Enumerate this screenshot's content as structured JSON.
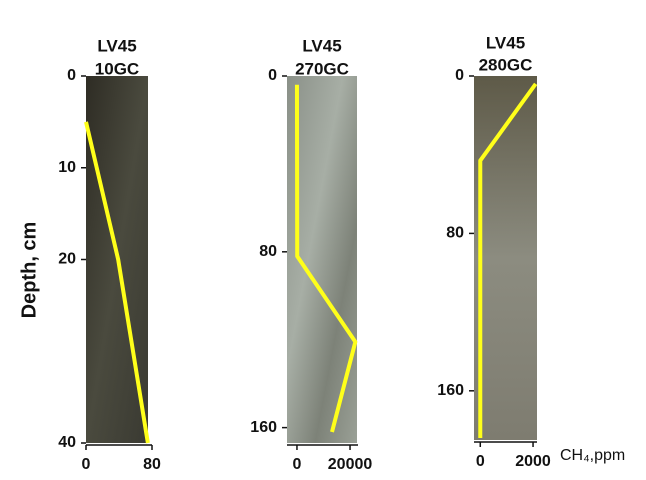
{
  "chart_data": [
    {
      "type": "line",
      "title": [
        "LV45",
        "10GC"
      ],
      "ylabel": "Depth, cm",
      "color": "#ffff1a",
      "x": [
        0,
        39,
        75
      ],
      "y": [
        5,
        20,
        40
      ],
      "xlim": [
        0,
        80
      ],
      "xticks": [
        0,
        80
      ],
      "ylim": [
        0,
        40
      ],
      "yticks": [
        0,
        10,
        20,
        40
      ]
    },
    {
      "type": "line",
      "title": [
        "LV45",
        "270GC"
      ],
      "color": "#ffff1a",
      "x": [
        0,
        100,
        22000,
        13200
      ],
      "y": [
        4,
        82,
        121,
        162
      ],
      "xlim": [
        -3000,
        23000
      ],
      "xticks": [
        0,
        20000
      ],
      "ylim": [
        0,
        167
      ],
      "yticks": [
        0,
        80,
        160
      ]
    },
    {
      "type": "line",
      "title": [
        "LV45",
        "280GC"
      ],
      "xlabel": "CH₄,ppm",
      "color": "#ffff1a",
      "x": [
        2100,
        0,
        0
      ],
      "y": [
        4,
        43,
        184
      ],
      "xlim": [
        -200,
        2150
      ],
      "xticks": [
        0,
        2000
      ],
      "ylim": [
        0,
        185
      ],
      "yticks": [
        0,
        80,
        160
      ]
    }
  ]
}
